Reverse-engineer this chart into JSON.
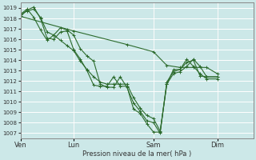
{
  "xlabel": "Pression niveau de la mer( hPa )",
  "bg_color": "#cce8e8",
  "grid_color": "#ffffff",
  "line_color": "#2d6b2d",
  "ylim": [
    1006.5,
    1019.5
  ],
  "yticks": [
    1007,
    1008,
    1009,
    1010,
    1011,
    1012,
    1013,
    1014,
    1015,
    1016,
    1017,
    1018,
    1019
  ],
  "xtick_labels": [
    "Ven",
    "Lun",
    "Sam",
    "Dim"
  ],
  "xtick_positions": [
    0,
    40,
    100,
    148
  ],
  "xlim": [
    0,
    175
  ],
  "series": [
    {
      "points": [
        [
          0,
          1018.2
        ],
        [
          5,
          1018.8
        ],
        [
          10,
          1019.1
        ],
        [
          15,
          1018.0
        ],
        [
          20,
          1016.1
        ],
        [
          25,
          1016.0
        ],
        [
          30,
          1016.7
        ],
        [
          35,
          1016.8
        ],
        [
          40,
          1015.0
        ],
        [
          45,
          1014.1
        ],
        [
          50,
          1013.0
        ],
        [
          55,
          1011.6
        ],
        [
          60,
          1011.5
        ],
        [
          65,
          1011.5
        ],
        [
          70,
          1012.4
        ],
        [
          75,
          1011.5
        ],
        [
          80,
          1011.5
        ],
        [
          85,
          1009.3
        ],
        [
          90,
          1008.9
        ],
        [
          95,
          1007.9
        ],
        [
          100,
          1007.1
        ],
        [
          105,
          1007.1
        ],
        [
          110,
          1011.7
        ],
        [
          115,
          1013.1
        ],
        [
          120,
          1013.1
        ],
        [
          125,
          1013.8
        ],
        [
          130,
          1014.0
        ],
        [
          135,
          1012.5
        ],
        [
          140,
          1012.4
        ],
        [
          148,
          1012.4
        ]
      ],
      "linestyle": "-"
    },
    {
      "points": [
        [
          0,
          1018.4
        ],
        [
          5,
          1018.9
        ],
        [
          10,
          1018.1
        ],
        [
          15,
          1016.9
        ],
        [
          20,
          1015.9
        ],
        [
          25,
          1016.4
        ],
        [
          30,
          1017.1
        ],
        [
          35,
          1016.9
        ],
        [
          40,
          1016.4
        ],
        [
          45,
          1015.1
        ],
        [
          50,
          1014.4
        ],
        [
          55,
          1013.9
        ],
        [
          60,
          1011.7
        ],
        [
          65,
          1011.4
        ],
        [
          70,
          1011.4
        ],
        [
          75,
          1012.4
        ],
        [
          80,
          1011.4
        ],
        [
          85,
          1009.9
        ],
        [
          90,
          1009.1
        ],
        [
          95,
          1008.2
        ],
        [
          100,
          1008.0
        ],
        [
          105,
          1007.0
        ],
        [
          110,
          1011.9
        ],
        [
          115,
          1012.9
        ],
        [
          120,
          1013.1
        ],
        [
          125,
          1014.1
        ],
        [
          130,
          1013.4
        ],
        [
          135,
          1012.7
        ],
        [
          140,
          1012.2
        ],
        [
          148,
          1012.2
        ]
      ],
      "linestyle": "-"
    },
    {
      "points": [
        [
          0,
          1018.4
        ],
        [
          5,
          1018.7
        ],
        [
          10,
          1018.9
        ],
        [
          15,
          1018.1
        ],
        [
          20,
          1016.7
        ],
        [
          25,
          1016.4
        ],
        [
          30,
          1015.9
        ],
        [
          35,
          1015.4
        ],
        [
          40,
          1014.9
        ],
        [
          45,
          1013.9
        ],
        [
          50,
          1013.1
        ],
        [
          55,
          1012.4
        ],
        [
          60,
          1011.9
        ],
        [
          65,
          1011.7
        ],
        [
          70,
          1011.7
        ],
        [
          75,
          1011.7
        ],
        [
          80,
          1011.7
        ],
        [
          85,
          1010.4
        ],
        [
          90,
          1009.4
        ],
        [
          95,
          1008.7
        ],
        [
          100,
          1008.4
        ],
        [
          105,
          1007.2
        ],
        [
          110,
          1011.7
        ],
        [
          115,
          1012.7
        ],
        [
          120,
          1012.9
        ],
        [
          125,
          1013.4
        ],
        [
          130,
          1014.1
        ],
        [
          135,
          1013.4
        ],
        [
          140,
          1012.4
        ],
        [
          148,
          1012.4
        ]
      ],
      "linestyle": "-"
    },
    {
      "points": [
        [
          0,
          1018.2
        ],
        [
          40,
          1016.8
        ],
        [
          80,
          1015.5
        ],
        [
          100,
          1014.8
        ],
        [
          110,
          1013.5
        ],
        [
          120,
          1013.3
        ],
        [
          130,
          1013.3
        ],
        [
          140,
          1013.3
        ],
        [
          148,
          1012.7
        ]
      ],
      "linestyle": "-"
    }
  ]
}
